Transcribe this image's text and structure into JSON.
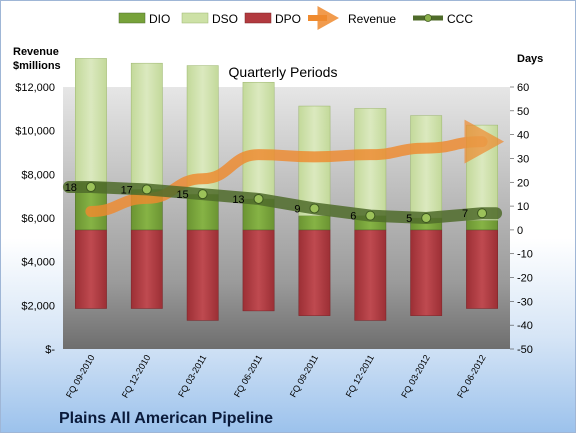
{
  "chart_data": {
    "type": "bar",
    "company": "Plains All American Pipeline",
    "subtitle": "Quarterly Periods",
    "left_axis_title": [
      "Revenue",
      "$millions"
    ],
    "right_axis_title": "Days",
    "left_axis": {
      "min": 0,
      "max": 12000,
      "step": 2000,
      "tick_labels": [
        "$-",
        "$2,000",
        "$4,000",
        "$6,000",
        "$8,000",
        "$10,000",
        "$12,000"
      ]
    },
    "right_axis": {
      "min": -50,
      "max": 60,
      "step": 10,
      "tick_labels": [
        "-50",
        "-40",
        "-30",
        "-20",
        "-10",
        "0",
        "10",
        "20",
        "30",
        "40",
        "50",
        "60"
      ]
    },
    "categories": [
      "FQ 09-2010",
      "FQ 12-2010",
      "FQ 03-2011",
      "FQ 06-2011",
      "FQ 09-2011",
      "FQ 12-2011",
      "FQ 03-2012",
      "FQ 06-2012"
    ],
    "legend": [
      "DIO",
      "DSO",
      "DPO",
      "Revenue",
      "CCC"
    ],
    "series": [
      {
        "name": "DIO",
        "axis": "right",
        "values": [
          20,
          17,
          15,
          13,
          6,
          6,
          5,
          4
        ]
      },
      {
        "name": "DSO",
        "axis": "right",
        "values": [
          52,
          53,
          54,
          49,
          46,
          45,
          43,
          40
        ]
      },
      {
        "name": "DPO",
        "axis": "right",
        "values": [
          -33,
          -33,
          -38,
          -34,
          -36,
          -38,
          -36,
          -33
        ]
      },
      {
        "name": "Revenue",
        "axis": "left",
        "values": [
          6300,
          6900,
          7800,
          8900,
          8800,
          8900,
          9200,
          9500
        ]
      },
      {
        "name": "CCC",
        "axis": "right",
        "values": [
          18,
          17,
          15,
          13,
          9,
          6,
          5,
          7
        ],
        "labels": [
          "18",
          "17",
          "15",
          "13",
          "9",
          "6",
          "5",
          "7"
        ]
      }
    ],
    "colors": {
      "dio": "#77a23a",
      "dso": "#cde1a6",
      "dpo": "#b23a3f",
      "revenue": "#ef8a2e",
      "ccc": "#4f6b2a"
    },
    "grid": false
  }
}
